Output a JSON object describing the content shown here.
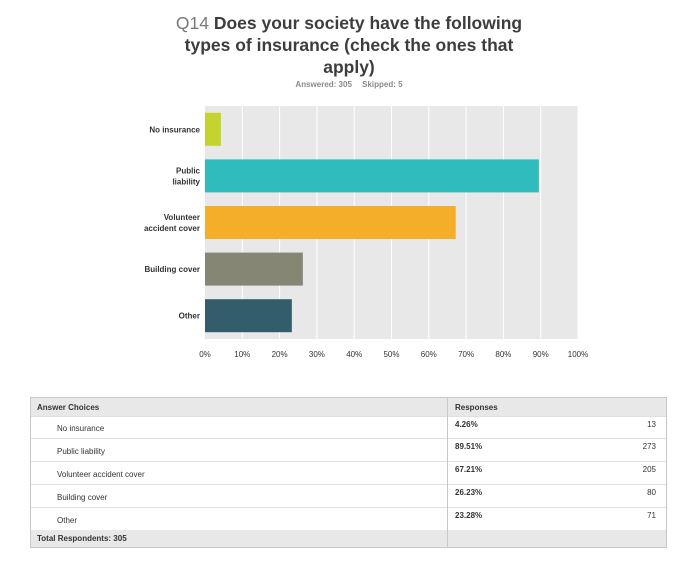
{
  "title": {
    "qnum": "Q14",
    "text": "Does your society have the following types of insurance (check the ones that apply)"
  },
  "answered": {
    "answered_text": "Answered: 305",
    "skipped_text": "Skipped: 5"
  },
  "chart_data": {
    "type": "bar",
    "orientation": "horizontal",
    "categories": [
      [
        "No insurance"
      ],
      [
        "Public",
        "liability"
      ],
      [
        "Volunteer",
        "accident cover"
      ],
      [
        "Building cover"
      ],
      [
        "Other"
      ]
    ],
    "values": [
      4.26,
      89.51,
      67.21,
      26.23,
      23.28
    ],
    "colors": [
      "#c5d32e",
      "#30bbbd",
      "#f4ae2a",
      "#868674",
      "#345d6b"
    ],
    "xlim": [
      0,
      100
    ],
    "ticks": [
      0,
      10,
      20,
      30,
      40,
      50,
      60,
      70,
      80,
      90,
      100
    ],
    "tick_labels": [
      "0%",
      "10%",
      "20%",
      "30%",
      "40%",
      "50%",
      "60%",
      "70%",
      "80%",
      "90%",
      "100%"
    ],
    "grid": true,
    "plot_background": "#e8e8e8"
  },
  "table": {
    "header": {
      "choice": "Answer Choices",
      "responses": "Responses"
    },
    "rows": [
      {
        "choice": "No insurance",
        "pct": "4.26%",
        "count": "13"
      },
      {
        "choice": "Public liability",
        "pct": "89.51%",
        "count": "273"
      },
      {
        "choice": "Volunteer accident cover",
        "pct": "67.21%",
        "count": "205"
      },
      {
        "choice": "Building cover",
        "pct": "26.23%",
        "count": "80"
      },
      {
        "choice": "Other",
        "pct": "23.28%",
        "count": "71"
      }
    ],
    "footer": "Total Respondents: 305"
  }
}
